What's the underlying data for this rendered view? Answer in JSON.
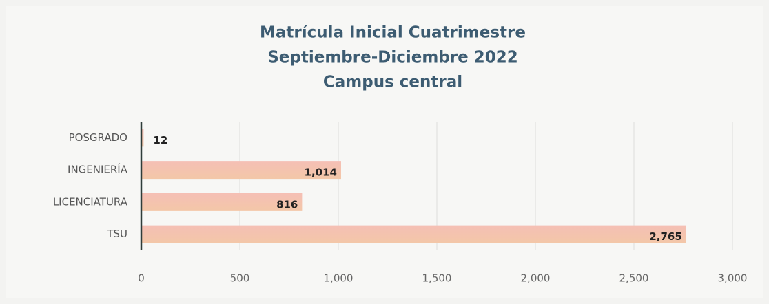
{
  "chart_data": {
    "type": "bar",
    "orientation": "horizontal",
    "title": [
      "Matrícula Inicial Cuatrimestre",
      "Septiembre-Diciembre 2022",
      "Campus central"
    ],
    "categories": [
      "POSGRADO",
      "INGENIERÍA",
      "LICENCIATURA",
      "TSU"
    ],
    "values": [
      12,
      1014,
      816,
      2765
    ],
    "value_labels": [
      "12",
      "1,014",
      "816",
      "2,765"
    ],
    "color": "#f3bcae",
    "xlim": [
      0,
      3000
    ],
    "xticks": [
      0,
      500,
      {
        "value": 1000,
        "label": "1,000"
      },
      {
        "value": 1500,
        "label": "1,500"
      },
      {
        "value": 2000,
        "label": "2,000"
      },
      {
        "value": 2500,
        "label": "2,500"
      },
      {
        "value": 3000,
        "label": "3,000"
      }
    ],
    "grid": true
  }
}
